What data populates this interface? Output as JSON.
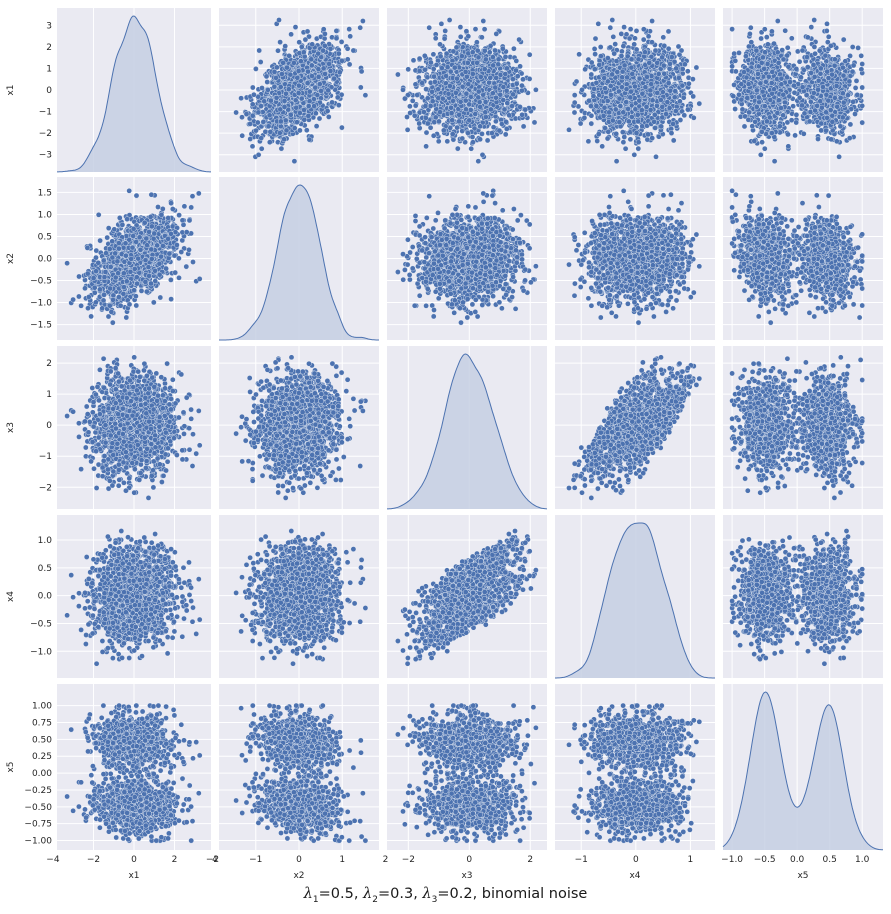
{
  "colors": {
    "background": "#eaeaf2",
    "grid": "#ffffff",
    "marker": "#4c72b0",
    "marker_edge": "#ffffff",
    "kde_fill": "#c6cfe3",
    "kde_line": "#4c72b0"
  },
  "chart_data": {
    "type": "pairplot",
    "variables": [
      "x1",
      "x2",
      "x3",
      "x4",
      "x5"
    ],
    "ranges": {
      "x1": [
        -3.8,
        3.8
      ],
      "x2": [
        -1.85,
        1.85
      ],
      "x3": [
        -2.7,
        2.55
      ],
      "x4": [
        -1.48,
        1.45
      ],
      "x5": [
        -1.14,
        1.32
      ]
    },
    "ticks": {
      "x1": [
        -3,
        -2,
        -1,
        0,
        1,
        2,
        3
      ],
      "x2": [
        -1.5,
        -1.0,
        -0.5,
        0.0,
        0.5,
        1.0,
        1.5
      ],
      "x3": [
        -2,
        -1,
        0,
        1,
        2
      ],
      "x4": [
        -1.0,
        -0.5,
        0.0,
        0.5,
        1.0
      ],
      "x5": [
        -1.0,
        -0.75,
        -0.5,
        -0.25,
        0.0,
        0.25,
        0.5,
        0.75,
        1.0
      ]
    },
    "x_tick_labels": {
      "x1": [
        "−4",
        "−2",
        "0",
        "2",
        "4"
      ],
      "x2": [
        "−2",
        "−1",
        "0",
        "1",
        "2"
      ],
      "x3": [
        "−2",
        "0",
        "2"
      ],
      "x4": [
        "−1",
        "0",
        "1"
      ],
      "x5": [
        "−1.0",
        "−0.5",
        "0.0",
        "0.5",
        "1.0"
      ]
    },
    "x_tick_values": {
      "x1": [
        -4,
        -2,
        0,
        2,
        4
      ],
      "x2": [
        -2,
        -1,
        0,
        1,
        2
      ],
      "x3": [
        -2,
        0,
        2
      ],
      "x4": [
        -1,
        0,
        1
      ],
      "x5": [
        -1.0,
        -0.5,
        0.0,
        0.5,
        1.0
      ]
    },
    "y_tick_labels": {
      "x1": [
        "−3",
        "−2",
        "−1",
        "0",
        "1",
        "2",
        "3"
      ],
      "x2": [
        "−1.5",
        "−1.0",
        "−0.5",
        "0.0",
        "0.5",
        "1.0",
        "1.5"
      ],
      "x3": [
        "−2",
        "−1",
        "0",
        "1",
        "2"
      ],
      "x4": [
        "−1.0",
        "−0.5",
        "0.0",
        "0.5",
        "1.0"
      ],
      "x5": [
        "−1.00",
        "−0.75",
        "−0.50",
        "−0.25",
        "0.00",
        "0.25",
        "0.50",
        "0.75",
        "1.00"
      ]
    },
    "diagonal": "kde",
    "off_diagonal": "scatter",
    "kde_shape": {
      "x1": "unimodal, peak near 0",
      "x2": "unimodal, peak near 0",
      "x3": "unimodal, peak near 0",
      "x4": "flat-topped, peaks near -0.2 and 0.2",
      "x5": "bimodal, peaks near -0.45 and 0.45"
    },
    "generating_model": {
      "lambda1": 0.5,
      "lambda2": 0.3,
      "lambda3": 0.2,
      "noise": "binomial"
    },
    "n_points_per_panel": 1700
  },
  "caption": {
    "lambda_symbol": "λ",
    "sub1": "1",
    "val1": "=0.5, ",
    "sub2": "2",
    "val2": "=0.3, ",
    "sub3": "3",
    "val3": "=0.2, binomial noise"
  }
}
